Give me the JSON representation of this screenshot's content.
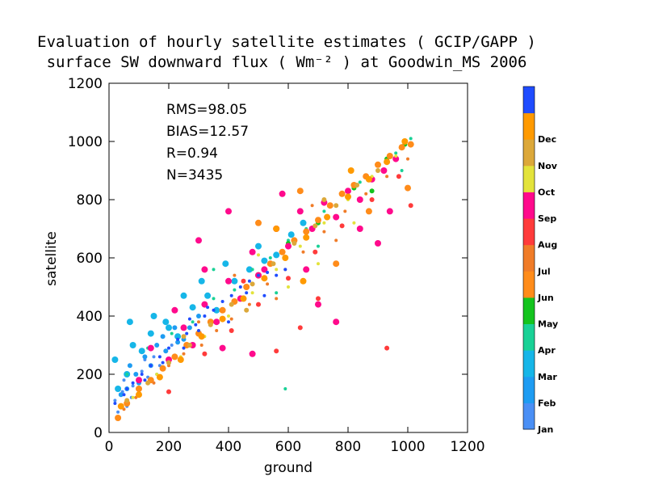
{
  "chart_data": {
    "type": "scatter",
    "title": "Evaluation of hourly satellite estimates ( GCIP/GAPP )",
    "subtitle": "surface SW downward flux ( Wm⁻² ) at Goodwin_MS 2006",
    "xlabel": "ground",
    "ylabel": "satellite",
    "xlim": [
      0,
      1200
    ],
    "ylim": [
      0,
      1200
    ],
    "xticks": [
      "0",
      "200",
      "400",
      "600",
      "800",
      "1000",
      "1200"
    ],
    "yticks": [
      "0",
      "200",
      "400",
      "600",
      "800",
      "1000",
      "1200"
    ],
    "grid": false,
    "stats": {
      "rms": "RMS=98.05",
      "bias": "BIAS=12.57",
      "r": "R=0.94",
      "n": "N=3435"
    },
    "colorbar": {
      "placement": "right",
      "months": [
        {
          "label": "Jan",
          "color": "#4a8ff5"
        },
        {
          "label": "Feb",
          "color": "#1e9cf2"
        },
        {
          "label": "Mar",
          "color": "#16b6e8"
        },
        {
          "label": "Apr",
          "color": "#19d196"
        },
        {
          "label": "May",
          "color": "#14c41e"
        },
        {
          "label": "Jun",
          "color": "#ff8c1a"
        },
        {
          "label": "Jul",
          "color": "#f07c28"
        },
        {
          "label": "Aug",
          "color": "#ff3b3b"
        },
        {
          "label": "Sep",
          "color": "#ff0a8c"
        },
        {
          "label": "Oct",
          "color": "#e3e33b"
        },
        {
          "label": "Nov",
          "color": "#dca83a"
        },
        {
          "label": "Dec",
          "color": "#ff9a00"
        },
        {
          "label": "",
          "color": "#1f4cff"
        }
      ]
    },
    "series": [
      {
        "label": "Jan",
        "color": "#4a8ff5",
        "points": [
          [
            20,
            110
          ],
          [
            45,
            140
          ],
          [
            80,
            160
          ],
          [
            110,
            210
          ],
          [
            150,
            260
          ],
          [
            60,
            90
          ],
          [
            130,
            190
          ],
          [
            30,
            70
          ],
          [
            95,
            150
          ],
          [
            170,
            230
          ],
          [
            210,
            300
          ],
          [
            75,
            120
          ],
          [
            50,
            180
          ],
          [
            120,
            250
          ],
          [
            160,
            200
          ]
        ]
      },
      {
        "label": "Feb",
        "color": "#1e9cf2",
        "points": [
          [
            40,
            130
          ],
          [
            90,
            200
          ],
          [
            140,
            230
          ],
          [
            190,
            280
          ],
          [
            230,
            310
          ],
          [
            270,
            360
          ],
          [
            60,
            150
          ],
          [
            120,
            260
          ],
          [
            180,
            330
          ],
          [
            250,
            320
          ],
          [
            300,
            400
          ],
          [
            100,
            170
          ],
          [
            220,
            360
          ],
          [
            160,
            300
          ],
          [
            70,
            230
          ]
        ]
      },
      {
        "label": "Mar",
        "color": "#16b6e8",
        "points": [
          [
            30,
            150
          ],
          [
            60,
            200
          ],
          [
            110,
            280
          ],
          [
            140,
            340
          ],
          [
            190,
            380
          ],
          [
            230,
            330
          ],
          [
            280,
            430
          ],
          [
            330,
            470
          ],
          [
            360,
            420
          ],
          [
            420,
            520
          ],
          [
            470,
            560
          ],
          [
            520,
            590
          ],
          [
            80,
            300
          ],
          [
            150,
            400
          ],
          [
            250,
            470
          ],
          [
            310,
            520
          ],
          [
            390,
            580
          ],
          [
            500,
            640
          ],
          [
            560,
            610
          ],
          [
            610,
            680
          ],
          [
            650,
            720
          ],
          [
            70,
            380
          ],
          [
            20,
            250
          ],
          [
            200,
            360
          ]
        ]
      },
      {
        "label": "Apr",
        "color": "#19d196",
        "points": [
          [
            60,
            200
          ],
          [
            130,
            290
          ],
          [
            210,
            340
          ],
          [
            280,
            380
          ],
          [
            350,
            460
          ],
          [
            420,
            490
          ],
          [
            480,
            560
          ],
          [
            540,
            600
          ],
          [
            600,
            660
          ],
          [
            660,
            700
          ],
          [
            720,
            760
          ],
          [
            780,
            820
          ],
          [
            840,
            860
          ],
          [
            900,
            920
          ],
          [
            960,
            960
          ],
          [
            1010,
            1010
          ],
          [
            350,
            560
          ],
          [
            560,
            480
          ],
          [
            700,
            640
          ],
          [
            880,
            800
          ],
          [
            980,
            900
          ],
          [
            590,
            150
          ]
        ]
      },
      {
        "label": "May",
        "color": "#14c41e",
        "points": [
          [
            700,
            720
          ],
          [
            820,
            840
          ],
          [
            930,
            940
          ],
          [
            990,
            990
          ],
          [
            600,
            650
          ],
          [
            880,
            830
          ]
        ]
      },
      {
        "label": "Jun",
        "color": "#ff8c1a",
        "points": [
          [
            30,
            50
          ],
          [
            60,
            100
          ],
          [
            100,
            150
          ],
          [
            140,
            180
          ],
          [
            180,
            220
          ],
          [
            220,
            260
          ],
          [
            260,
            300
          ],
          [
            300,
            340
          ],
          [
            340,
            380
          ],
          [
            380,
            420
          ],
          [
            420,
            450
          ],
          [
            460,
            500
          ],
          [
            500,
            540
          ],
          [
            540,
            580
          ],
          [
            580,
            620
          ],
          [
            620,
            660
          ],
          [
            660,
            690
          ],
          [
            700,
            730
          ],
          [
            740,
            780
          ],
          [
            780,
            820
          ],
          [
            820,
            850
          ],
          [
            860,
            880
          ],
          [
            900,
            920
          ],
          [
            940,
            950
          ],
          [
            980,
            980
          ],
          [
            1010,
            990
          ],
          [
            640,
            830
          ],
          [
            760,
            580
          ],
          [
            500,
            720
          ],
          [
            870,
            760
          ],
          [
            1000,
            840
          ]
        ]
      },
      {
        "label": "Jul",
        "color": "#f07c28",
        "points": [
          [
            50,
            80
          ],
          [
            90,
            120
          ],
          [
            150,
            170
          ],
          [
            200,
            230
          ],
          [
            250,
            270
          ],
          [
            310,
            300
          ],
          [
            360,
            350
          ],
          [
            410,
            390
          ],
          [
            470,
            440
          ],
          [
            530,
            510
          ],
          [
            590,
            560
          ],
          [
            650,
            620
          ],
          [
            720,
            690
          ],
          [
            790,
            760
          ],
          [
            860,
            820
          ],
          [
            930,
            880
          ],
          [
            1000,
            940
          ],
          [
            300,
            380
          ],
          [
            420,
            540
          ],
          [
            560,
            460
          ],
          [
            680,
            780
          ],
          [
            760,
            660
          ]
        ]
      },
      {
        "label": "Aug",
        "color": "#ff3b3b",
        "points": [
          [
            200,
            140
          ],
          [
            320,
            270
          ],
          [
            410,
            350
          ],
          [
            500,
            440
          ],
          [
            600,
            530
          ],
          [
            690,
            620
          ],
          [
            780,
            710
          ],
          [
            880,
            800
          ],
          [
            970,
            880
          ],
          [
            450,
            520
          ],
          [
            560,
            280
          ],
          [
            640,
            360
          ],
          [
            700,
            460
          ],
          [
            930,
            290
          ],
          [
            1010,
            780
          ]
        ]
      },
      {
        "label": "Sep",
        "color": "#ff0a8c",
        "points": [
          [
            100,
            180
          ],
          [
            140,
            290
          ],
          [
            200,
            250
          ],
          [
            250,
            360
          ],
          [
            280,
            300
          ],
          [
            320,
            440
          ],
          [
            360,
            380
          ],
          [
            400,
            520
          ],
          [
            440,
            460
          ],
          [
            480,
            620
          ],
          [
            520,
            560
          ],
          [
            560,
            700
          ],
          [
            600,
            640
          ],
          [
            640,
            760
          ],
          [
            680,
            700
          ],
          [
            720,
            790
          ],
          [
            760,
            740
          ],
          [
            800,
            830
          ],
          [
            840,
            800
          ],
          [
            880,
            870
          ],
          [
            920,
            900
          ],
          [
            960,
            940
          ],
          [
            300,
            660
          ],
          [
            400,
            760
          ],
          [
            500,
            540
          ],
          [
            660,
            560
          ],
          [
            700,
            440
          ],
          [
            760,
            380
          ],
          [
            900,
            650
          ],
          [
            940,
            760
          ],
          [
            380,
            290
          ],
          [
            580,
            820
          ],
          [
            840,
            700
          ],
          [
            480,
            270
          ],
          [
            320,
            560
          ],
          [
            220,
            420
          ]
        ]
      },
      {
        "label": "Oct",
        "color": "#e3e33b",
        "points": [
          [
            80,
            120
          ],
          [
            160,
            200
          ],
          [
            240,
            260
          ],
          [
            320,
            330
          ],
          [
            400,
            400
          ],
          [
            480,
            480
          ],
          [
            560,
            560
          ],
          [
            640,
            640
          ],
          [
            720,
            720
          ],
          [
            800,
            800
          ],
          [
            880,
            880
          ],
          [
            960,
            950
          ],
          [
            600,
            500
          ],
          [
            700,
            580
          ],
          [
            820,
            720
          ],
          [
            500,
            610
          ]
        ]
      },
      {
        "label": "Nov",
        "color": "#dca83a",
        "points": [
          [
            60,
            110
          ],
          [
            130,
            170
          ],
          [
            200,
            240
          ],
          [
            270,
            300
          ],
          [
            340,
            370
          ],
          [
            410,
            440
          ],
          [
            480,
            510
          ],
          [
            550,
            580
          ],
          [
            620,
            650
          ],
          [
            690,
            710
          ],
          [
            760,
            780
          ],
          [
            830,
            850
          ],
          [
            900,
            900
          ],
          [
            250,
            330
          ],
          [
            460,
            420
          ],
          [
            720,
            800
          ]
        ]
      },
      {
        "label": "Dec",
        "color": "#ff9a00",
        "points": [
          [
            40,
            90
          ],
          [
            100,
            130
          ],
          [
            170,
            190
          ],
          [
            240,
            250
          ],
          [
            310,
            330
          ],
          [
            380,
            390
          ],
          [
            450,
            460
          ],
          [
            520,
            530
          ],
          [
            590,
            600
          ],
          [
            660,
            670
          ],
          [
            730,
            740
          ],
          [
            800,
            810
          ],
          [
            870,
            870
          ],
          [
            930,
            930
          ],
          [
            990,
            1000
          ],
          [
            560,
            700
          ],
          [
            810,
            900
          ],
          [
            650,
            520
          ]
        ]
      },
      {
        "label": "",
        "color": "#1f4cff",
        "points": [
          [
            20,
            100
          ],
          [
            50,
            130
          ],
          [
            80,
            170
          ],
          [
            110,
            200
          ],
          [
            140,
            230
          ],
          [
            170,
            260
          ],
          [
            200,
            290
          ],
          [
            230,
            320
          ],
          [
            260,
            340
          ],
          [
            290,
            370
          ],
          [
            320,
            400
          ],
          [
            350,
            420
          ],
          [
            380,
            450
          ],
          [
            410,
            470
          ],
          [
            440,
            500
          ],
          [
            470,
            520
          ],
          [
            500,
            540
          ],
          [
            530,
            550
          ],
          [
            560,
            540
          ],
          [
            590,
            560
          ],
          [
            300,
            350
          ],
          [
            400,
            380
          ],
          [
            520,
            470
          ],
          [
            250,
            290
          ],
          [
            180,
            240
          ],
          [
            120,
            180
          ],
          [
            60,
            150
          ],
          [
            330,
            430
          ],
          [
            460,
            480
          ],
          [
            270,
            390
          ]
        ]
      }
    ]
  }
}
